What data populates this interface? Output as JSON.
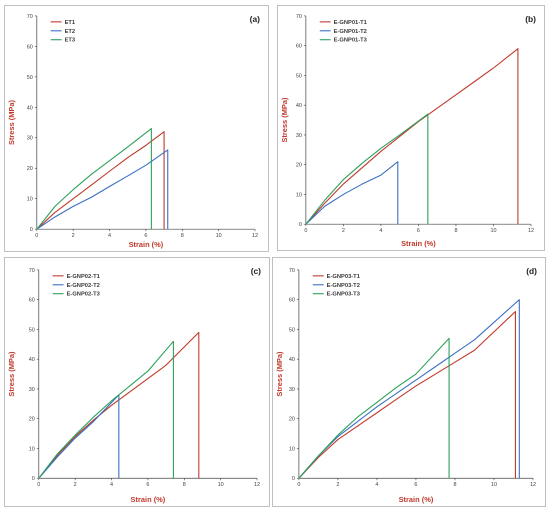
{
  "chart_data": [
    {
      "type": "line",
      "panel_label": "(a)",
      "xlabel": "Strain (%)",
      "ylabel": "Stress (MPa)",
      "xlim": [
        0,
        12
      ],
      "ylim": [
        0,
        70
      ],
      "xticks": [
        0,
        2,
        4,
        6,
        8,
        10,
        12
      ],
      "yticks": [
        0,
        10,
        20,
        30,
        40,
        50,
        60,
        70
      ],
      "legend_position": "top-left",
      "series": [
        {
          "name": "ET1",
          "color": "#c0392b",
          "x": [
            0,
            1,
            2,
            3,
            4,
            5,
            6,
            7.0,
            7.0
          ],
          "y": [
            0,
            5.5,
            10,
            14.5,
            19,
            23.5,
            27.5,
            32,
            0
          ]
        },
        {
          "name": "ET2",
          "color": "#3a6fc4",
          "x": [
            0,
            1,
            2,
            3,
            4,
            5,
            6,
            7.2,
            7.2
          ],
          "y": [
            0,
            4,
            7.5,
            10.5,
            14,
            17.5,
            21,
            26,
            0
          ]
        },
        {
          "name": "ET3",
          "color": "#2ca05a",
          "x": [
            0,
            1,
            2,
            3,
            4,
            5,
            6.3,
            6.3
          ],
          "y": [
            0,
            7.5,
            13,
            18,
            22.5,
            27,
            33,
            0
          ]
        }
      ]
    },
    {
      "type": "line",
      "panel_label": "(b)",
      "xlabel": "Strain (%)",
      "ylabel": "Stress (MPa)",
      "xlim": [
        0,
        12
      ],
      "ylim": [
        0,
        70
      ],
      "xticks": [
        0,
        2,
        4,
        6,
        8,
        10,
        12
      ],
      "yticks": [
        0,
        10,
        20,
        30,
        40,
        50,
        60,
        70
      ],
      "legend_position": "top-left",
      "series": [
        {
          "name": "E-GNP01-T1",
          "color": "#c0392b",
          "x": [
            0,
            1,
            2,
            3,
            4,
            5,
            6,
            7,
            8,
            9,
            10,
            11.3,
            11.3
          ],
          "y": [
            0,
            7,
            13.5,
            19,
            24.5,
            29.5,
            34.5,
            39,
            43.5,
            48,
            52.5,
            59,
            0
          ]
        },
        {
          "name": "E-GNP01-T2",
          "color": "#3a6fc4",
          "x": [
            0,
            1,
            2,
            3,
            4,
            4.9,
            4.9
          ],
          "y": [
            0,
            6,
            10,
            13.5,
            16.5,
            21,
            0
          ]
        },
        {
          "name": "E-GNP01-T3",
          "color": "#2ca05a",
          "x": [
            0,
            1,
            2,
            3,
            4,
            5,
            6.5,
            6.5
          ],
          "y": [
            0,
            8,
            15,
            20.5,
            25.5,
            30,
            37,
            0
          ]
        }
      ]
    },
    {
      "type": "line",
      "panel_label": "(c)",
      "xlabel": "Strain (%)",
      "ylabel": "Stress (MPa)",
      "xlim": [
        0,
        12
      ],
      "ylim": [
        0,
        70
      ],
      "xticks": [
        0,
        2,
        4,
        6,
        8,
        10,
        12
      ],
      "yticks": [
        0,
        10,
        20,
        30,
        40,
        50,
        60,
        70
      ],
      "legend_position": "top-left",
      "series": [
        {
          "name": "E-GNP02-T1",
          "color": "#c0392b",
          "x": [
            0,
            1,
            2,
            3,
            4,
            5,
            6,
            7,
            8.8,
            8.8
          ],
          "y": [
            0,
            7.5,
            14,
            19.5,
            24.5,
            29,
            33.5,
            38,
            49,
            0
          ]
        },
        {
          "name": "E-GNP02-T2",
          "color": "#3a6fc4",
          "x": [
            0,
            1,
            2,
            3,
            4.4,
            4.4
          ],
          "y": [
            0,
            7,
            13.5,
            19,
            28,
            0
          ]
        },
        {
          "name": "E-GNP02-T3",
          "color": "#2ca05a",
          "x": [
            0,
            1,
            2,
            3,
            4,
            5,
            6,
            7.4,
            7.4
          ],
          "y": [
            0,
            8,
            14.5,
            20.5,
            26,
            31,
            36,
            46,
            0
          ]
        }
      ]
    },
    {
      "type": "line",
      "panel_label": "(d)",
      "xlabel": "Strain (%)",
      "ylabel": "Stress (MPa)",
      "xlim": [
        0,
        12
      ],
      "ylim": [
        0,
        70
      ],
      "xticks": [
        0,
        2,
        4,
        6,
        8,
        10,
        12
      ],
      "yticks": [
        0,
        10,
        20,
        30,
        40,
        50,
        60,
        70
      ],
      "legend_position": "top-left",
      "series": [
        {
          "name": "E-GNP03-T1",
          "color": "#c0392b",
          "x": [
            0,
            1,
            2,
            3,
            4,
            5,
            6,
            7,
            8,
            9,
            11.1,
            11.1
          ],
          "y": [
            0,
            7,
            13,
            17.5,
            22,
            26.5,
            31,
            35,
            39,
            43,
            56,
            0
          ]
        },
        {
          "name": "E-GNP03-T2",
          "color": "#3a6fc4",
          "x": [
            0,
            1,
            2,
            3,
            4,
            5,
            6,
            7,
            8,
            9,
            11.3,
            11.3
          ],
          "y": [
            0,
            7.5,
            14,
            19,
            24,
            28.5,
            33,
            37.5,
            42,
            46.5,
            60,
            0
          ]
        },
        {
          "name": "E-GNP03-T3",
          "color": "#2ca05a",
          "x": [
            0,
            1,
            2,
            3,
            4,
            5,
            6,
            7.7,
            7.7
          ],
          "y": [
            0,
            7.5,
            14.5,
            20.5,
            25.5,
            30.5,
            35,
            47,
            0
          ]
        }
      ]
    }
  ]
}
